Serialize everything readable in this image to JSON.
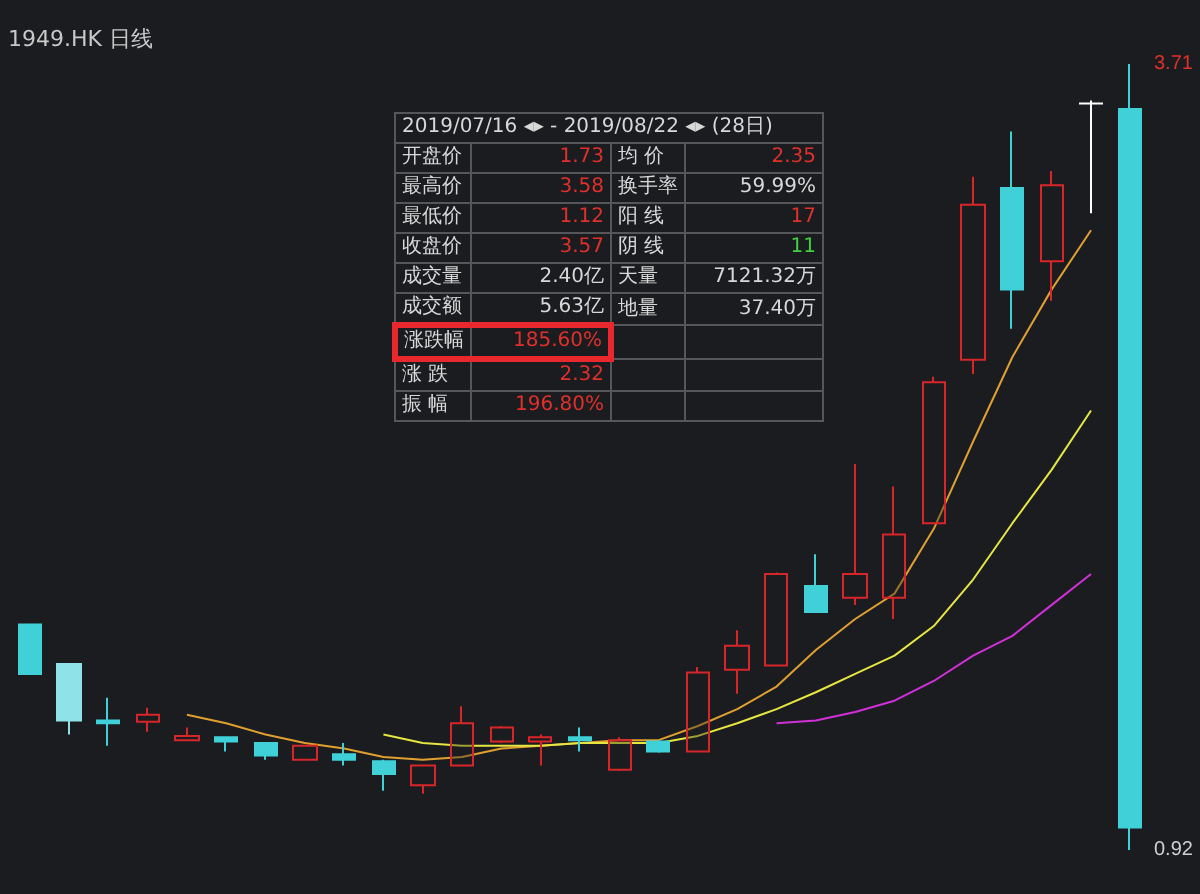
{
  "chart_data": {
    "type": "candlestick",
    "title": "1949.HK 日线",
    "categories": [
      null,
      null,
      null,
      null,
      null,
      null,
      null,
      null,
      null,
      null,
      null,
      null,
      null,
      null,
      null,
      null,
      null,
      null,
      null,
      null,
      null,
      null,
      null,
      null,
      null,
      null,
      null,
      null,
      null
    ],
    "ylim": [
      0.92,
      3.71
    ],
    "yticks": [
      0.92,
      3.71
    ],
    "grid": false,
    "series": [
      {
        "ohlc": [
          [
            1.72,
            1.72,
            1.545,
            1.545
          ],
          [
            1.58,
            1.58,
            1.33,
            1.38
          ],
          [
            1.38,
            1.46,
            1.29,
            1.37
          ],
          [
            1.375,
            1.425,
            1.34,
            1.4
          ],
          [
            1.31,
            1.355,
            1.31,
            1.325
          ],
          [
            1.32,
            1.32,
            1.27,
            1.305
          ],
          [
            1.3,
            1.3,
            1.24,
            1.255
          ],
          [
            1.24,
            1.29,
            1.24,
            1.29
          ],
          [
            1.26,
            1.3,
            1.22,
            1.24
          ],
          [
            1.235,
            1.24,
            1.13,
            1.19
          ],
          [
            1.15,
            1.22,
            1.12,
            1.22
          ],
          [
            1.22,
            1.43,
            1.22,
            1.37
          ],
          [
            1.305,
            1.36,
            1.3,
            1.355
          ],
          [
            1.305,
            1.33,
            1.22,
            1.32
          ],
          [
            1.32,
            1.355,
            1.27,
            1.31
          ],
          [
            1.205,
            1.32,
            1.2,
            1.31
          ],
          [
            1.305,
            1.31,
            1.265,
            1.27
          ],
          [
            1.27,
            1.57,
            1.27,
            1.55
          ],
          [
            1.56,
            1.7,
            1.475,
            1.645
          ],
          [
            1.575,
            1.905,
            1.575,
            1.9
          ],
          [
            1.857,
            1.97,
            1.765,
            1.765
          ],
          [
            1.815,
            2.29,
            1.79,
            1.9
          ],
          [
            1.815,
            2.21,
            1.74,
            2.04
          ],
          [
            2.08,
            2.6,
            2.08,
            2.58
          ],
          [
            2.66,
            3.31,
            2.61,
            3.21
          ],
          [
            3.27,
            3.47,
            2.77,
            2.91
          ],
          [
            3.01,
            3.33,
            2.87,
            3.28
          ],
          [
            3.57,
            3.58,
            3.18,
            3.57
          ],
          [
            3.55,
            3.71,
            0.92,
            1.0
          ]
        ],
        "colors": [
          "#3fd0d8",
          "#8fe3e8",
          "#3fd0d8",
          "#d8252a",
          "#d8252a",
          "#3fd0d8",
          "#3fd0d8",
          "#d8252a",
          "#3fd0d8",
          "#3fd0d8",
          "#d8252a",
          "#d8252a",
          "#d8252a",
          "#d8252a",
          "#3fd0d8",
          "#d8252a",
          "#3fd0d8",
          "#d8252a",
          "#d8252a",
          "#d8252a",
          "#3fd0d8",
          "#d8252a",
          "#d8252a",
          "#d8252a",
          "#d8252a",
          "#3fd0d8",
          "#d8252a",
          "#ffffff",
          "#3fd0d8"
        ]
      },
      {
        "type": "line",
        "color": "#e0a030",
        "values": [
          null,
          null,
          null,
          null,
          1.4,
          1.37,
          1.33,
          1.3,
          1.28,
          1.25,
          1.24,
          1.25,
          1.28,
          1.29,
          1.3,
          1.31,
          1.31,
          1.36,
          1.42,
          1.5,
          1.63,
          1.74,
          1.83,
          2.06,
          2.37,
          2.67,
          2.91,
          3.12,
          null
        ]
      },
      {
        "type": "line",
        "color": "#e6e640",
        "values": [
          null,
          null,
          null,
          null,
          null,
          null,
          null,
          null,
          null,
          1.33,
          1.3,
          1.29,
          1.29,
          1.29,
          1.3,
          1.3,
          1.3,
          1.325,
          1.37,
          1.42,
          1.48,
          1.545,
          1.61,
          1.715,
          1.88,
          2.08,
          2.27,
          2.48,
          null
        ]
      },
      {
        "type": "line",
        "color": "#d030d8",
        "values": [
          null,
          null,
          null,
          null,
          null,
          null,
          null,
          null,
          null,
          null,
          null,
          null,
          null,
          null,
          null,
          null,
          null,
          null,
          null,
          1.37,
          1.38,
          1.41,
          1.45,
          1.52,
          1.61,
          1.68,
          1.79,
          1.9,
          null
        ]
      }
    ],
    "annotations": [
      "2019/07/16 ◂▸ - 2019/08/22 ◂▸ (28日)",
      "开盘价",
      "1.73",
      "均 价",
      "2.35",
      "最高价",
      "3.58",
      "换手率",
      "59.99%",
      "最低价",
      "1.12",
      "阳 线",
      "17",
      "收盘价",
      "3.57",
      "阴 线",
      "11",
      "成交量",
      "2.40亿",
      "天量",
      "7121.32万",
      "成交额",
      "5.63亿",
      "地量",
      "37.40万",
      "涨跌幅",
      "185.60%",
      "涨 跌",
      "2.32",
      "振 幅",
      "196.80%"
    ]
  }
}
